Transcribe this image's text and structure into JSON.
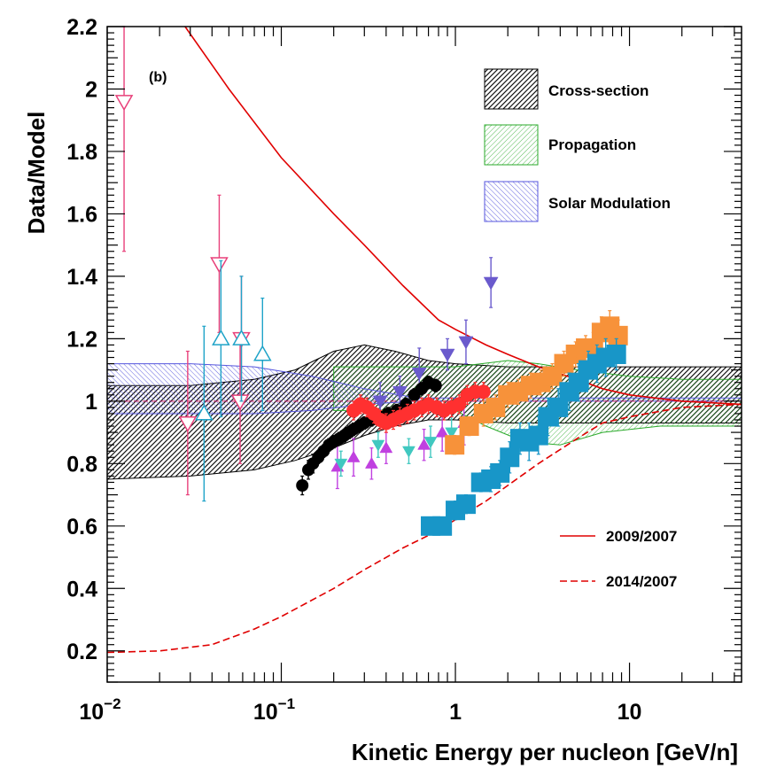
{
  "chart_data": {
    "type": "scatter",
    "title": "",
    "annotation": "(b)",
    "xlabel": "Kinetic Energy per nucleon [GeV/n]",
    "ylabel": "Data/Model",
    "xscale": "log",
    "xlim": [
      0.01,
      44
    ],
    "ylim": [
      0.1,
      2.2
    ],
    "grid": false,
    "reference_line": 1.0,
    "x_ticks": [
      {
        "value": 0.01,
        "base": "10",
        "exp": "−2"
      },
      {
        "value": 0.1,
        "base": "10",
        "exp": "−1"
      },
      {
        "value": 1,
        "base": "1",
        "exp": ""
      },
      {
        "value": 10,
        "base": "10",
        "exp": ""
      }
    ],
    "y_ticks": [
      {
        "value": 0.2,
        "label": "0.2"
      },
      {
        "value": 0.4,
        "label": "0.4"
      },
      {
        "value": 0.6,
        "label": "0.6"
      },
      {
        "value": 0.8,
        "label": "0.8"
      },
      {
        "value": 1.0,
        "label": "1"
      },
      {
        "value": 1.2,
        "label": "1.2"
      },
      {
        "value": 1.4,
        "label": "1.4"
      },
      {
        "value": 1.6,
        "label": "1.6"
      },
      {
        "value": 1.8,
        "label": "1.8"
      },
      {
        "value": 2.0,
        "label": "2"
      },
      {
        "value": 2.2,
        "label": "2.2"
      }
    ],
    "legend_location": "top-right",
    "uncertainty_bands": [
      {
        "name": "Cross-section",
        "color": "#000000",
        "fill_opacity": 0.55,
        "upper": [
          [
            0.01,
            1.05
          ],
          [
            0.03,
            1.05
          ],
          [
            0.07,
            1.07
          ],
          [
            0.12,
            1.1
          ],
          [
            0.2,
            1.16
          ],
          [
            0.3,
            1.18
          ],
          [
            0.45,
            1.16
          ],
          [
            0.7,
            1.13
          ],
          [
            1.0,
            1.12
          ],
          [
            2,
            1.11
          ],
          [
            5,
            1.11
          ],
          [
            10,
            1.11
          ],
          [
            44,
            1.11
          ]
        ],
        "lower": [
          [
            0.01,
            0.75
          ],
          [
            0.03,
            0.76
          ],
          [
            0.07,
            0.78
          ],
          [
            0.12,
            0.81
          ],
          [
            0.2,
            0.85
          ],
          [
            0.3,
            0.89
          ],
          [
            0.45,
            0.92
          ],
          [
            0.7,
            0.94
          ],
          [
            1.0,
            0.94
          ],
          [
            2,
            0.93
          ],
          [
            5,
            0.93
          ],
          [
            10,
            0.93
          ],
          [
            44,
            0.93
          ]
        ]
      },
      {
        "name": "Propagation",
        "color": "#2aaa2a",
        "fill_opacity": 0.2,
        "upper": [
          [
            0.2,
            1.11
          ],
          [
            0.5,
            1.11
          ],
          [
            1.0,
            1.11
          ],
          [
            2,
            1.13
          ],
          [
            3,
            1.12
          ],
          [
            5,
            1.1
          ],
          [
            10,
            1.08
          ],
          [
            20,
            1.07
          ],
          [
            44,
            1.07
          ]
        ],
        "lower": [
          [
            0.2,
            0.97
          ],
          [
            0.5,
            0.97
          ],
          [
            1.0,
            0.97
          ],
          [
            1.5,
            0.92
          ],
          [
            2.5,
            0.87
          ],
          [
            4,
            0.86
          ],
          [
            7,
            0.9
          ],
          [
            15,
            0.92
          ],
          [
            44,
            0.92
          ]
        ]
      },
      {
        "name": "Solar Modulation",
        "color": "#5555dd",
        "fill_opacity": 0.25,
        "upper": [
          [
            0.01,
            1.12
          ],
          [
            0.03,
            1.12
          ],
          [
            0.07,
            1.11
          ],
          [
            0.15,
            1.08
          ],
          [
            0.3,
            1.04
          ],
          [
            0.6,
            1.01
          ],
          [
            1.0,
            1.01
          ],
          [
            44,
            1.01
          ]
        ],
        "lower": [
          [
            0.01,
            0.96
          ],
          [
            0.03,
            0.96
          ],
          [
            0.07,
            0.96
          ],
          [
            0.15,
            0.97
          ],
          [
            0.3,
            0.99
          ],
          [
            0.6,
            1.0
          ],
          [
            1.0,
            1.0
          ],
          [
            44,
            1.0
          ]
        ]
      }
    ],
    "lines": [
      {
        "name": "2009/2007",
        "color": "#e00000",
        "dash": "solid",
        "points": [
          [
            0.028,
            2.2
          ],
          [
            0.05,
            2.0
          ],
          [
            0.1,
            1.78
          ],
          [
            0.2,
            1.6
          ],
          [
            0.3,
            1.5
          ],
          [
            0.5,
            1.37
          ],
          [
            0.8,
            1.26
          ],
          [
            1.0,
            1.23
          ],
          [
            1.5,
            1.18
          ],
          [
            2,
            1.15
          ],
          [
            3,
            1.11
          ],
          [
            5,
            1.07
          ],
          [
            7,
            1.04
          ],
          [
            10,
            1.02
          ],
          [
            20,
            1.0
          ],
          [
            44,
            0.99
          ]
        ]
      },
      {
        "name": "2014/2007",
        "color": "#e00000",
        "dash": "dashed",
        "points": [
          [
            0.01,
            0.195
          ],
          [
            0.02,
            0.2
          ],
          [
            0.04,
            0.22
          ],
          [
            0.07,
            0.27
          ],
          [
            0.1,
            0.31
          ],
          [
            0.2,
            0.4
          ],
          [
            0.3,
            0.46
          ],
          [
            0.5,
            0.53
          ],
          [
            0.7,
            0.57
          ],
          [
            1.0,
            0.62
          ],
          [
            1.5,
            0.68
          ],
          [
            2,
            0.73
          ],
          [
            3,
            0.8
          ],
          [
            5,
            0.88
          ],
          [
            7,
            0.93
          ],
          [
            10,
            0.95
          ],
          [
            20,
            0.98
          ],
          [
            44,
            0.99
          ]
        ]
      }
    ],
    "series": [
      {
        "name": "pink open down-triangles",
        "marker": "tri-down-open",
        "color": "#e8407a",
        "size": 9,
        "points": [
          [
            0.0125,
            1.96,
            0.48
          ],
          [
            0.029,
            0.93,
            0.23
          ],
          [
            0.044,
            1.44,
            0.22
          ],
          [
            0.058,
            1.0,
            0.2
          ],
          [
            0.059,
            1.2,
            0.2
          ]
        ]
      },
      {
        "name": "cyan open up-triangles",
        "marker": "tri-up-open",
        "color": "#1ea3c8",
        "size": 9,
        "points": [
          [
            0.036,
            0.96,
            0.28
          ],
          [
            0.045,
            1.2,
            0.25
          ],
          [
            0.059,
            1.2,
            0.2
          ],
          [
            0.078,
            1.15,
            0.18
          ]
        ]
      },
      {
        "name": "violet filled down-triangles",
        "marker": "tri-down",
        "color": "#6a5acd",
        "size": 8,
        "points": [
          [
            0.37,
            1.0,
            0.06
          ],
          [
            0.48,
            1.03,
            0.05
          ],
          [
            0.62,
            1.09,
            0.08
          ],
          [
            0.9,
            1.15,
            0.05
          ],
          [
            1.15,
            1.19,
            0.07
          ],
          [
            1.6,
            1.38,
            0.08
          ]
        ]
      },
      {
        "name": "magenta filled up-triangles",
        "marker": "tri-up",
        "color": "#c040e0",
        "size": 7,
        "points": [
          [
            0.21,
            0.79,
            0.07
          ],
          [
            0.26,
            0.82,
            0.06
          ],
          [
            0.33,
            0.8,
            0.05
          ],
          [
            0.4,
            0.85,
            0.05
          ],
          [
            0.66,
            0.86,
            0.05
          ],
          [
            0.84,
            0.9,
            0.06
          ],
          [
            1.12,
            0.93,
            0.07
          ]
        ]
      },
      {
        "name": "turquoise filled down-triangles",
        "marker": "tri-down",
        "color": "#40c8c0",
        "size": 7,
        "points": [
          [
            0.22,
            0.8,
            0.04
          ],
          [
            0.36,
            0.86,
            0.04
          ],
          [
            0.54,
            0.84,
            0.04
          ],
          [
            0.72,
            0.87,
            0.05
          ],
          [
            0.95,
            0.9,
            0.05
          ]
        ]
      },
      {
        "name": "black filled circles",
        "marker": "circle",
        "color": "#000000",
        "size": 7,
        "points": [
          [
            0.132,
            0.73,
            0.03
          ],
          [
            0.143,
            0.78,
            0.03
          ],
          [
            0.152,
            0.8,
            0.03
          ],
          [
            0.163,
            0.82,
            0.02
          ],
          [
            0.175,
            0.84,
            0.02
          ],
          [
            0.188,
            0.86,
            0.02
          ],
          [
            0.2,
            0.87,
            0.02
          ],
          [
            0.215,
            0.88,
            0.02
          ],
          [
            0.23,
            0.89,
            0.02
          ],
          [
            0.245,
            0.9,
            0.02
          ],
          [
            0.26,
            0.91,
            0.02
          ],
          [
            0.28,
            0.92,
            0.02
          ],
          [
            0.3,
            0.93,
            0.02
          ],
          [
            0.33,
            0.94,
            0.02
          ],
          [
            0.37,
            0.95,
            0.02
          ],
          [
            0.41,
            0.96,
            0.02
          ],
          [
            0.46,
            0.97,
            0.02
          ],
          [
            0.52,
            0.99,
            0.02
          ],
          [
            0.58,
            1.02,
            0.02
          ],
          [
            0.64,
            1.04,
            0.02
          ],
          [
            0.7,
            1.06,
            0.02
          ],
          [
            0.77,
            1.05,
            0.02
          ]
        ]
      },
      {
        "name": "red filled circles",
        "marker": "circle",
        "color": "#ff3030",
        "size": 8,
        "points": [
          [
            0.26,
            0.97,
            0.03
          ],
          [
            0.285,
            0.99,
            0.03
          ],
          [
            0.31,
            0.98,
            0.03
          ],
          [
            0.34,
            0.96,
            0.03
          ],
          [
            0.37,
            0.94,
            0.03
          ],
          [
            0.4,
            0.93,
            0.03
          ],
          [
            0.44,
            0.94,
            0.03
          ],
          [
            0.48,
            0.95,
            0.03
          ],
          [
            0.53,
            0.96,
            0.03
          ],
          [
            0.58,
            0.97,
            0.03
          ],
          [
            0.64,
            0.98,
            0.03
          ],
          [
            0.7,
            0.99,
            0.03
          ],
          [
            0.78,
            0.98,
            0.03
          ],
          [
            0.86,
            0.97,
            0.03
          ],
          [
            0.95,
            0.98,
            0.03
          ],
          [
            1.05,
            0.99,
            0.03
          ],
          [
            1.17,
            1.02,
            0.03
          ],
          [
            1.3,
            1.03,
            0.03
          ],
          [
            1.45,
            1.03,
            0.03
          ]
        ]
      },
      {
        "name": "orange filled squares",
        "marker": "square",
        "color": "#f7923a",
        "size": 11,
        "points": [
          [
            0.99,
            0.86,
            0.03
          ],
          [
            1.2,
            0.92,
            0.03
          ],
          [
            1.45,
            0.96,
            0.04
          ],
          [
            1.7,
            0.98,
            0.04
          ],
          [
            2.0,
            1.02,
            0.04
          ],
          [
            2.3,
            1.03,
            0.04
          ],
          [
            2.7,
            1.05,
            0.04
          ],
          [
            3.1,
            1.06,
            0.04
          ],
          [
            3.6,
            1.08,
            0.04
          ],
          [
            4.2,
            1.12,
            0.04
          ],
          [
            4.9,
            1.15,
            0.04
          ],
          [
            5.6,
            1.17,
            0.04
          ],
          [
            6.2,
            1.17,
            0.05
          ],
          [
            6.9,
            1.22,
            0.05
          ],
          [
            7.7,
            1.24,
            0.05
          ],
          [
            8.6,
            1.21,
            0.05
          ]
        ]
      },
      {
        "name": "blue filled squares",
        "marker": "square",
        "color": "#1896c8",
        "size": 11,
        "points": [
          [
            0.72,
            0.6,
            0.02
          ],
          [
            0.84,
            0.6,
            0.02
          ],
          [
            1.0,
            0.65,
            0.03
          ],
          [
            1.15,
            0.67,
            0.03
          ],
          [
            1.4,
            0.74,
            0.03
          ],
          [
            1.6,
            0.75,
            0.04
          ],
          [
            1.8,
            0.77,
            0.04
          ],
          [
            2.05,
            0.82,
            0.05
          ],
          [
            2.35,
            0.88,
            0.05
          ],
          [
            2.65,
            0.87,
            0.06
          ],
          [
            3.0,
            0.89,
            0.06
          ],
          [
            3.4,
            0.95,
            0.06
          ],
          [
            3.9,
            0.98,
            0.06
          ],
          [
            4.5,
            1.03,
            0.06
          ],
          [
            5.1,
            1.06,
            0.06
          ],
          [
            5.8,
            1.1,
            0.06
          ],
          [
            6.5,
            1.12,
            0.06
          ],
          [
            7.3,
            1.14,
            0.06
          ],
          [
            8.4,
            1.15,
            0.05
          ]
        ]
      }
    ]
  }
}
